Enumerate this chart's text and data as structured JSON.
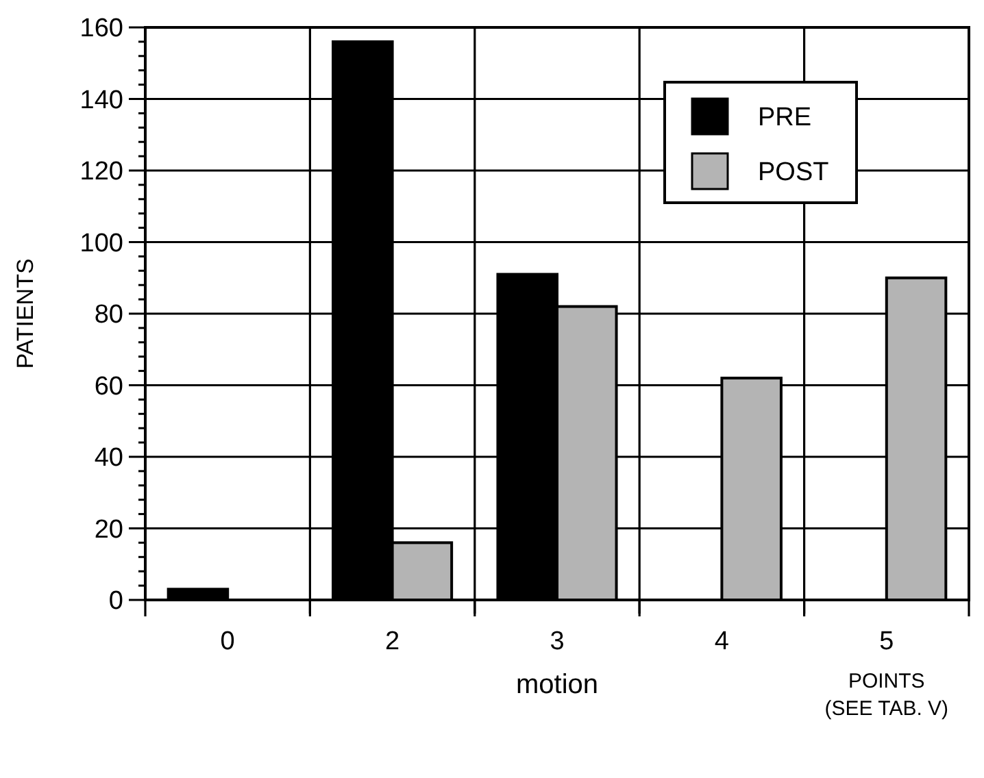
{
  "chart_data": {
    "type": "bar",
    "categories": [
      "0",
      "2",
      "3",
      "4",
      "5"
    ],
    "series": [
      {
        "name": "PRE",
        "color": "#000000",
        "values": [
          3,
          156,
          91,
          0,
          0
        ]
      },
      {
        "name": "POST",
        "color": "#b4b4b4",
        "values": [
          0,
          16,
          82,
          62,
          90
        ]
      }
    ],
    "ylabel": "PATIENTS",
    "xlabel": "motion",
    "annotations": [
      "POINTS\n(SEE TAB. V)"
    ],
    "ylim": [
      0,
      160
    ],
    "yticks": [
      0,
      {
        "value": 4,
        "label": null
      },
      {
        "value": 8,
        "label": null
      },
      {
        "value": 12,
        "label": null
      },
      {
        "value": 16,
        "label": null
      },
      20,
      {
        "value": 24,
        "label": null
      },
      {
        "value": 28,
        "label": null
      },
      {
        "value": 32,
        "label": null
      },
      {
        "value": 36,
        "label": null
      },
      40,
      {
        "value": 44,
        "label": null
      },
      {
        "value": 48,
        "label": null
      },
      {
        "value": 52,
        "label": null
      },
      {
        "value": 56,
        "label": null
      },
      60,
      {
        "value": 64,
        "label": null
      },
      {
        "value": 68,
        "label": null
      },
      {
        "value": 72,
        "label": null
      },
      {
        "value": 76,
        "label": null
      },
      80,
      {
        "value": 84,
        "label": null
      },
      {
        "value": 88,
        "label": null
      },
      {
        "value": 92,
        "label": null
      },
      {
        "value": 96,
        "label": null
      },
      100,
      {
        "value": 104,
        "label": null
      },
      {
        "value": 108,
        "label": null
      },
      {
        "value": 112,
        "label": null
      },
      {
        "value": 116,
        "label": null
      },
      120,
      {
        "value": 124,
        "label": null
      },
      {
        "value": 128,
        "label": null
      },
      {
        "value": 132,
        "label": null
      },
      {
        "value": 136,
        "label": null
      },
      140,
      {
        "value": 144,
        "label": null
      },
      {
        "value": 148,
        "label": null
      },
      {
        "value": 152,
        "label": null
      },
      {
        "value": 156,
        "label": null
      },
      160
    ],
    "grid": true,
    "legend": "top right"
  }
}
